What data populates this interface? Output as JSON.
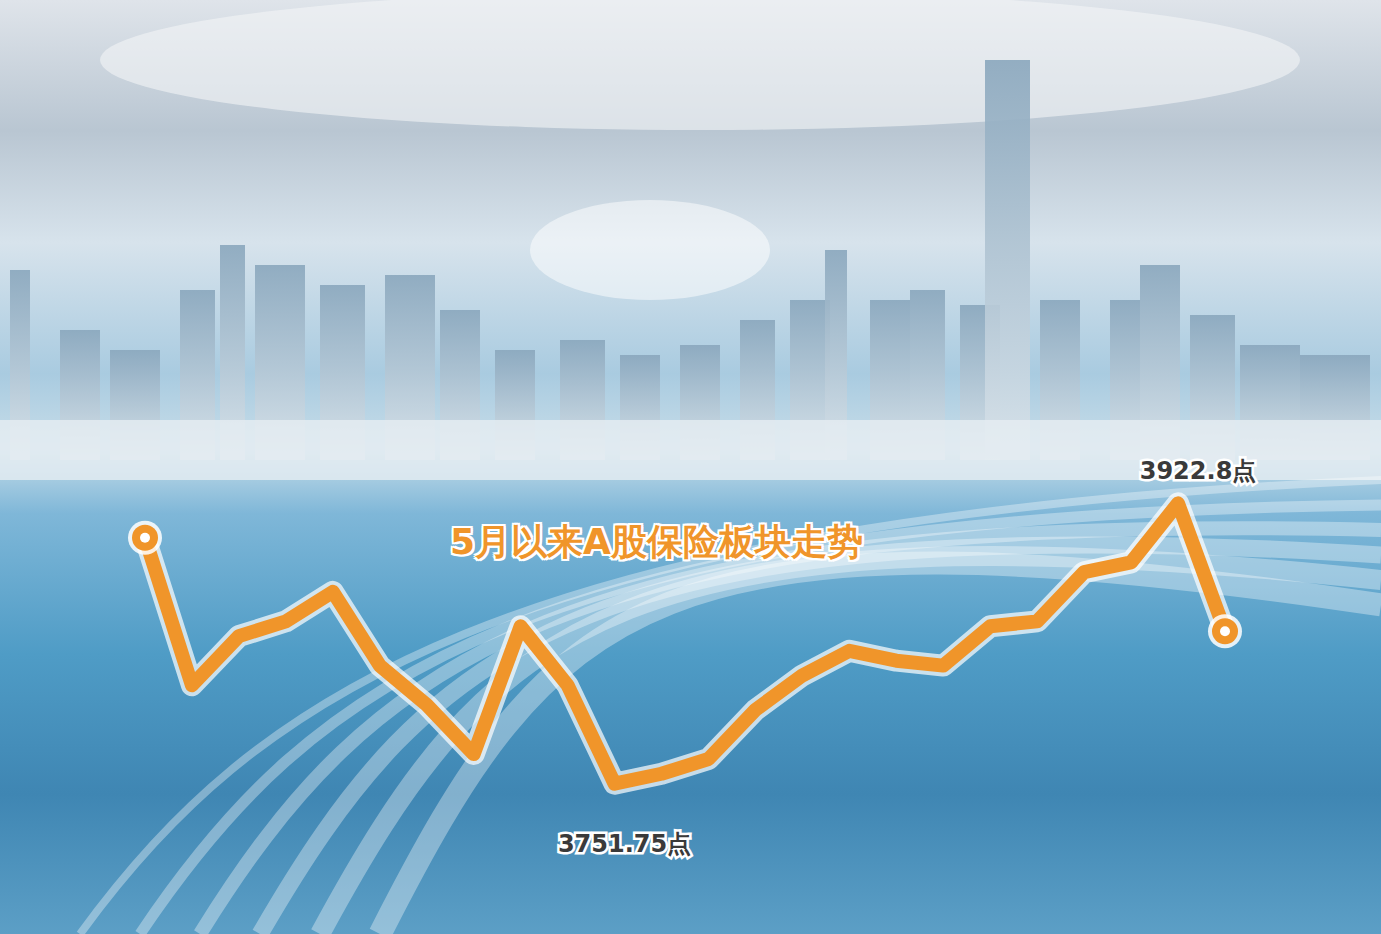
{
  "chart_data": {
    "type": "line",
    "title": "5月以来A股保险板块走势",
    "categories": [
      null,
      null,
      null,
      null,
      null,
      null,
      null,
      null,
      null,
      null,
      null,
      null,
      null,
      null,
      null,
      null,
      null,
      null,
      null,
      null,
      null,
      null,
      null,
      null
    ],
    "values": [
      3901.8,
      3811.8,
      3841.8,
      3850.8,
      3868.8,
      3823.8,
      3799.8,
      3769.8,
      3847.8,
      3811.8,
      3751.75,
      3757.8,
      3766.8,
      3796.8,
      3817.8,
      3832.8,
      3826.8,
      3823.8,
      3847.8,
      3850.8,
      3880.8,
      3886.8,
      3922.8,
      3844.8
    ],
    "color": "#f0952a",
    "marker": "circle",
    "ylim": [
      3660,
      4230
    ],
    "tick_labels": false,
    "grid": false,
    "annotations": [
      {
        "text": "3922.8点",
        "x": 22,
        "y": 3922.8
      },
      {
        "text": "3751.75点",
        "x": 10,
        "y": 3751.75
      }
    ]
  }
}
